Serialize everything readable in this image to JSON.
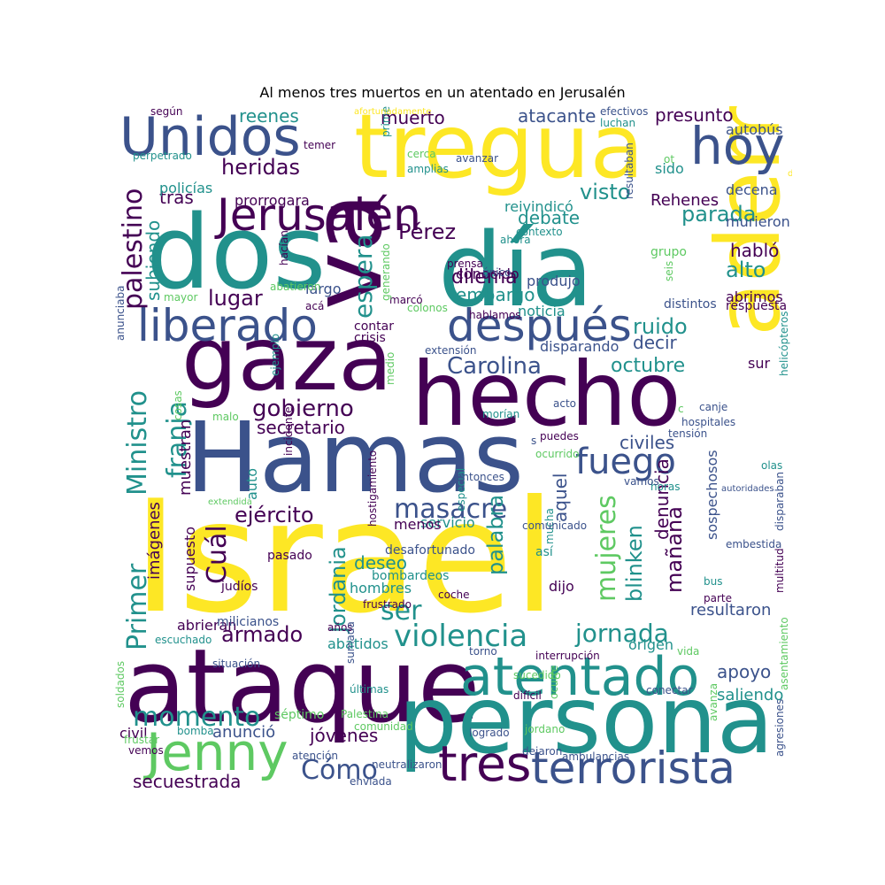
{
  "title": "Al menos tres muertos en un atentado en Jerusalén",
  "palette": [
    "#440154",
    "#3b528b",
    "#21918c",
    "#5ec962",
    "#fde725"
  ],
  "words": [
    "Israel",
    "ataque",
    "persona",
    "Hamas",
    "hecho",
    "además",
    "dos",
    "día",
    "va",
    "tregua",
    "gaza",
    "Unidos",
    "atentado",
    "Jenny",
    "terrorista",
    "tres",
    "Jerusalén",
    "hoy",
    "liberado",
    "después",
    "fuego",
    "violencia",
    "momento",
    "masacre",
    "Cómo",
    "mujeres",
    "Primer",
    "Ministro",
    "Carolina",
    "gobierno",
    "franja",
    "ejército",
    "jornada",
    "palestino",
    "Cuál",
    "ser",
    "armado",
    "mañana",
    "secuestrada",
    "octubre",
    "Pérez",
    "ruido",
    "parada",
    "visto",
    "heridas",
    "presunto",
    "atacante",
    "muerto",
    "reenes",
    "espera",
    "lugar",
    "alto",
    "habló",
    "embargo",
    "dilema",
    "conocido",
    "debate",
    "noticia",
    "secretario",
    "jóvenes",
    "palabra",
    "deseo",
    "Jordania",
    "blinken",
    "denuncia",
    "civiles",
    "apoyo",
    "aquel",
    "decir",
    "sur",
    "abrimos",
    "resultaron",
    "saliendo",
    "anunció",
    "subiendo",
    "tras",
    "policías",
    "prorrogara",
    "autobús",
    "Rehenes",
    "sido",
    "decena",
    "murieron",
    "muestran",
    "sospechosos",
    "auto",
    "largo",
    "dijo",
    "abatidos",
    "origen",
    "imágenes",
    "supuesto",
    "servicio",
    "menos",
    "hombres",
    "abrieran",
    "civil",
    "reivindicó",
    "produjo",
    "disparando",
    "grupo",
    "distintos",
    "respuesta",
    "extensión",
    "contar",
    "crisis",
    "marcó",
    "hablamos",
    "generando",
    "acá",
    "mayor",
    "hacían",
    "anunciaba",
    "abatieron",
    "milicianos",
    "judíos",
    "pasado",
    "bombardeos",
    "desafortunado",
    "así",
    "coche",
    "frustrado",
    "años",
    "escuchado",
    "situación",
    "soldados",
    "bomba",
    "vemos",
    "frustar",
    "atención",
    "enviada",
    "neutralizaron",
    "comunidad",
    "Palestina",
    "últimas",
    "sumada",
    "séptimo",
    "logrado",
    "jordano",
    "dejaron",
    "ambulancias",
    "difícil",
    "sucedido",
    "conectar",
    "vida",
    "torno",
    "interrupción",
    "ocurre",
    "avanza",
    "agresiones",
    "asentamiento",
    "extendida",
    "hostigamiento",
    "especial",
    "entonces",
    "ocurrido",
    "mucha",
    "comunicado",
    "embestida",
    "multitud",
    "disparaban",
    "autoridades",
    "horas",
    "olas",
    "vamos",
    "bus",
    "parte",
    "hospitales",
    "tensión",
    "canje",
    "helicópteros",
    "acto",
    "puedes",
    "morían",
    "medio",
    "incidente",
    "ejemplo",
    "malo",
    "cosas",
    "cerca",
    "amplias",
    "avanzar",
    "resultaban",
    "primera",
    "perpetrado",
    "temer",
    "según",
    "afortunadamente",
    "efectivos",
    "luchan",
    "ahora",
    "contexto",
    "único",
    "prensa",
    "colonos",
    "seis",
    "dec",
    "ot",
    "s",
    "c"
  ]
}
